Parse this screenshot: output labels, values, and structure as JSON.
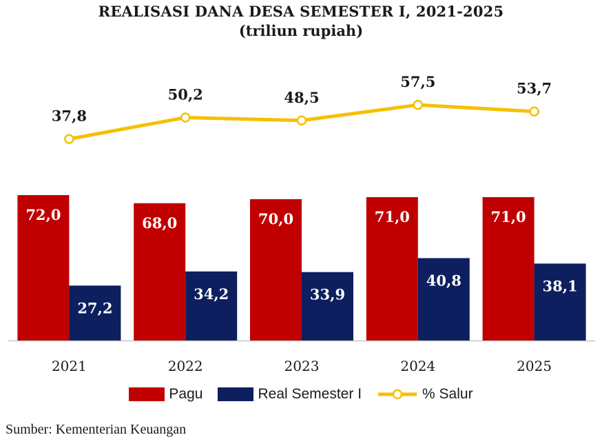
{
  "chart_data": {
    "type": "bar",
    "title": "REALISASI DANA DESA SEMESTER I, 2021-2025",
    "subtitle": "(triliun rupiah)",
    "categories": [
      "2021",
      "2022",
      "2023",
      "2024",
      "2025"
    ],
    "series": [
      {
        "name": "Pagu",
        "kind": "bar",
        "color": "#C00000",
        "values": [
          72.0,
          68.0,
          70.0,
          71.0,
          71.0
        ],
        "labels": [
          "72,0",
          "68,0",
          "70,0",
          "71,0",
          "71,0"
        ]
      },
      {
        "name": "Real Semester I",
        "kind": "bar",
        "color": "#0D1F5F",
        "values": [
          27.2,
          34.2,
          33.9,
          40.8,
          38.1
        ],
        "labels": [
          "27,2",
          "34,2",
          "33,9",
          "40,8",
          "38,1"
        ]
      },
      {
        "name": "% Salur",
        "kind": "line",
        "color": "#F5C000",
        "values": [
          37.8,
          50.2,
          48.5,
          57.5,
          53.7
        ],
        "labels": [
          "37,8",
          "50,2",
          "48,5",
          "57,5",
          "53,7"
        ]
      }
    ],
    "ylim": [
      0,
      80
    ],
    "xlabel": "",
    "ylabel": "",
    "grid": false,
    "legend_position": "bottom",
    "source": "Sumber: Kementerian Keuangan"
  }
}
